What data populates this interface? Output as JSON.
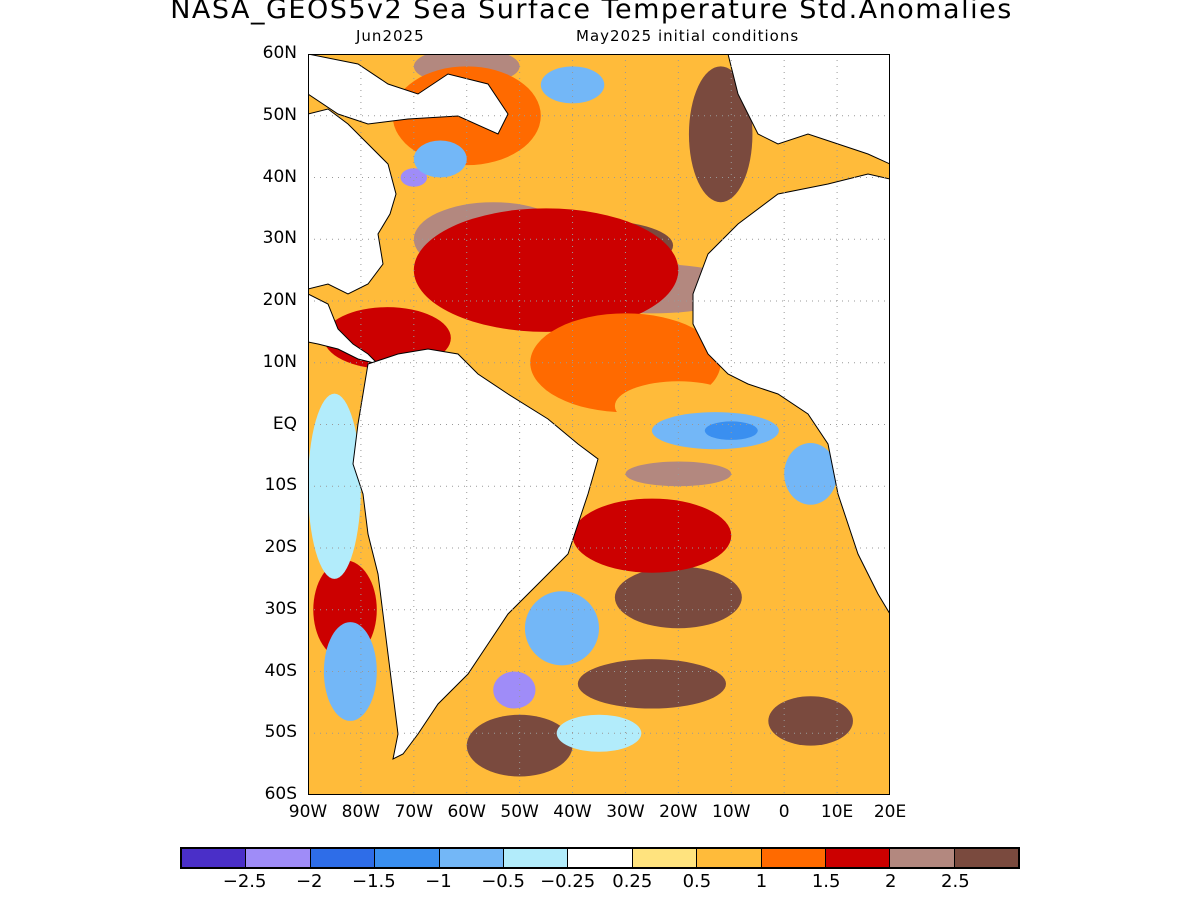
{
  "title": "NASA_GEOS5v2 Sea Surface Temperature Std.Anomalies",
  "subtitle_left": "Jun2025",
  "subtitle_right": "May2025 initial conditions",
  "map": {
    "lat_labels": [
      "60N",
      "50N",
      "40N",
      "30N",
      "20N",
      "10N",
      "EQ",
      "10S",
      "20S",
      "30S",
      "40S",
      "50S",
      "60S"
    ],
    "lon_labels": [
      "90W",
      "80W",
      "70W",
      "60W",
      "50W",
      "40W",
      "30W",
      "20W",
      "10W",
      "0",
      "10E",
      "20E"
    ],
    "lat_range": [
      -60,
      60
    ],
    "lon_range": [
      -90,
      20
    ],
    "grid_lines": "dotted",
    "colors": {
      "land": "#ffffff",
      "coastline": "#000000"
    },
    "anomaly_regions": [
      {
        "level": 2.5,
        "lon": -12,
        "lat": 47,
        "rx": 6,
        "ry": 11
      },
      {
        "level": 2.5,
        "lon": -35,
        "lat": 29,
        "rx": 14,
        "ry": 4
      },
      {
        "level": 2.5,
        "lon": -20,
        "lat": -28,
        "rx": 12,
        "ry": 5
      },
      {
        "level": 2.5,
        "lon": -25,
        "lat": -42,
        "rx": 14,
        "ry": 4
      },
      {
        "level": 2.5,
        "lon": -50,
        "lat": -52,
        "rx": 10,
        "ry": 5
      },
      {
        "level": 2.5,
        "lon": 5,
        "lat": -48,
        "rx": 8,
        "ry": 4
      },
      {
        "level": 2.0,
        "lon": -55,
        "lat": 30,
        "rx": 15,
        "ry": 6
      },
      {
        "level": 2.0,
        "lon": -25,
        "lat": 22,
        "rx": 18,
        "ry": 4
      },
      {
        "level": 2.0,
        "lon": -20,
        "lat": -8,
        "rx": 10,
        "ry": 2
      },
      {
        "level": 2.0,
        "lon": -60,
        "lat": 58,
        "rx": 10,
        "ry": 3
      },
      {
        "level": 1.5,
        "lon": -45,
        "lat": 25,
        "rx": 25,
        "ry": 10
      },
      {
        "level": 1.5,
        "lon": -75,
        "lat": 14,
        "rx": 12,
        "ry": 5
      },
      {
        "level": 1.5,
        "lon": -25,
        "lat": -18,
        "rx": 15,
        "ry": 6
      },
      {
        "level": 1.5,
        "lon": -83,
        "lat": -30,
        "rx": 6,
        "ry": 8
      },
      {
        "level": 1.0,
        "lon": -30,
        "lat": 10,
        "rx": 18,
        "ry": 8
      },
      {
        "level": 1.0,
        "lon": -60,
        "lat": 50,
        "rx": 14,
        "ry": 8
      },
      {
        "level": 0.5,
        "lon": -20,
        "lat": 3,
        "rx": 12,
        "ry": 4
      },
      {
        "level": -1.0,
        "lon": -13,
        "lat": -1,
        "rx": 12,
        "ry": 3
      },
      {
        "level": -1.0,
        "lon": 5,
        "lat": -8,
        "rx": 5,
        "ry": 5
      },
      {
        "level": -1.5,
        "lon": -10,
        "lat": -1,
        "rx": 5,
        "ry": 1.5
      },
      {
        "level": -0.5,
        "lon": -85,
        "lat": -10,
        "rx": 5,
        "ry": 15
      },
      {
        "level": -1.0,
        "lon": -82,
        "lat": -40,
        "rx": 5,
        "ry": 8
      },
      {
        "level": -1.0,
        "lon": -42,
        "lat": -33,
        "rx": 7,
        "ry": 6
      },
      {
        "level": -2.5,
        "lon": -51,
        "lat": -43,
        "rx": 4,
        "ry": 3
      },
      {
        "level": -2.5,
        "lon": -70,
        "lat": 40,
        "rx": 2.5,
        "ry": 1.5
      },
      {
        "level": -1.0,
        "lon": -65,
        "lat": 43,
        "rx": 5,
        "ry": 3
      },
      {
        "level": -1.0,
        "lon": -40,
        "lat": 55,
        "rx": 6,
        "ry": 3
      },
      {
        "level": -0.5,
        "lon": -35,
        "lat": -50,
        "rx": 8,
        "ry": 3
      }
    ]
  },
  "colorbar": {
    "colors": [
      "#4a2fc8",
      "#9f8cf8",
      "#2e6de8",
      "#3a8ff0",
      "#73b7f7",
      "#b2ecfb",
      "#ffffff",
      "#ffe37e",
      "#ffbb3a",
      "#ff6a00",
      "#cc0000",
      "#b3887f",
      "#7a4a3e"
    ],
    "labels": [
      "−2.5",
      "−2",
      "−1.5",
      "−1",
      "−0.5",
      "−0.25",
      "0.25",
      "0.5",
      "1",
      "1.5",
      "2",
      "2.5"
    ]
  }
}
